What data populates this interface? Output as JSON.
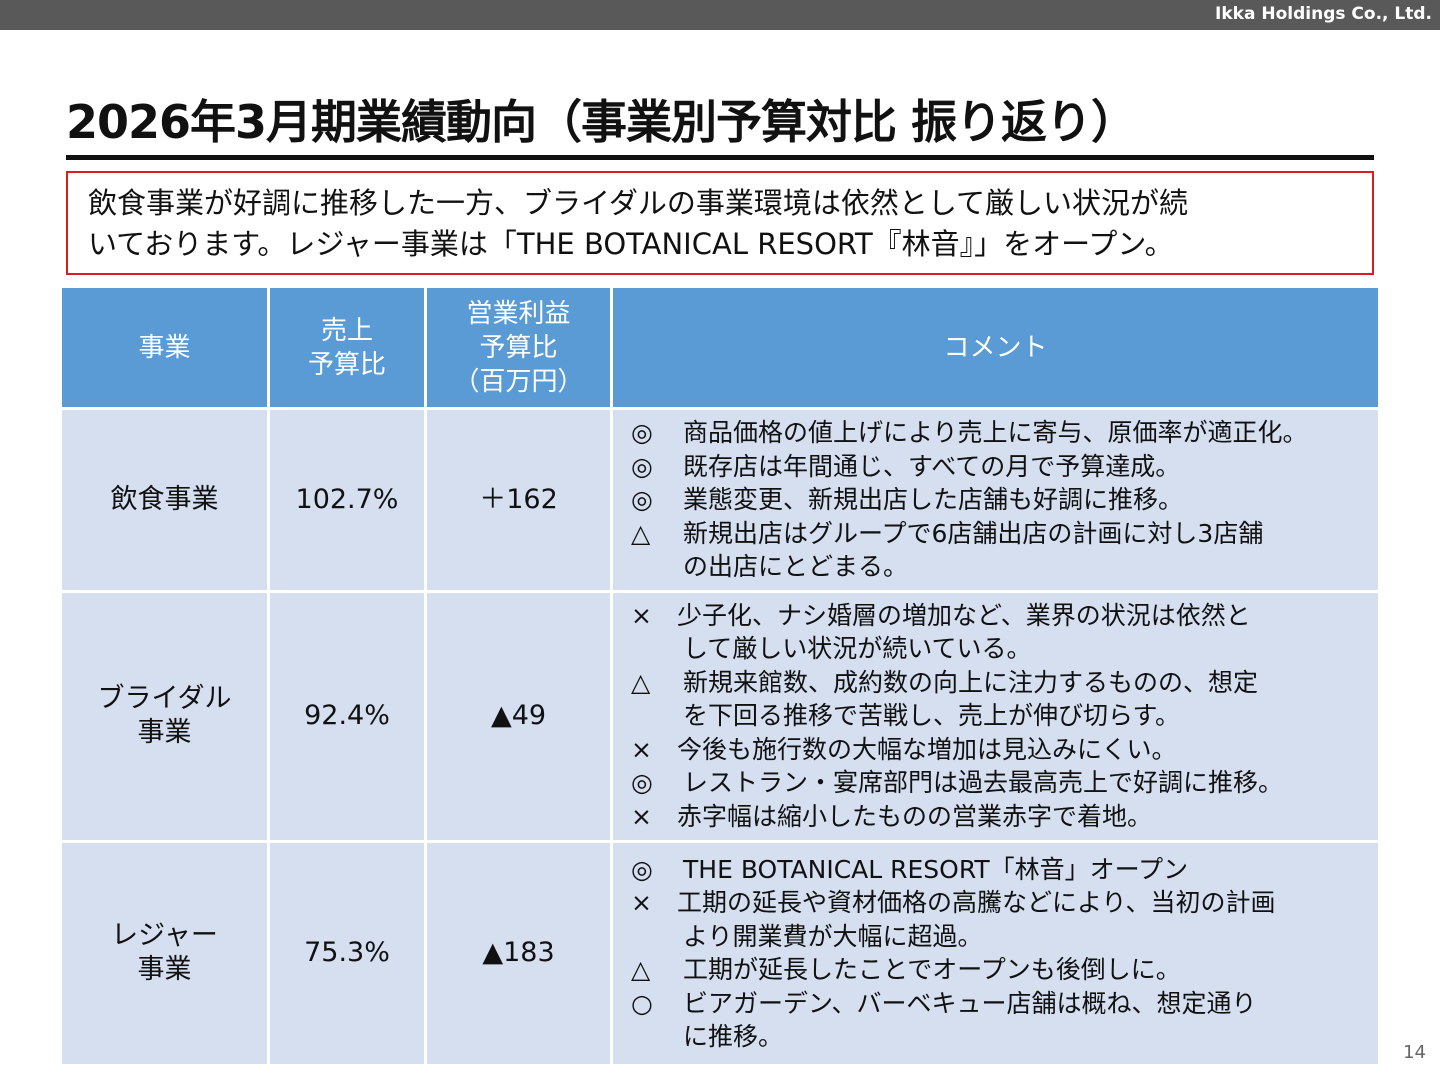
{
  "header": {
    "company": "Ikka Holdings Co., Ltd."
  },
  "title": "2026年3月期業績動向（事業別予算対比 振り返り）",
  "summary": {
    "line1": "飲食事業が好調に推移した一方、ブライダルの事業環境は依然として厳しい状況が続",
    "line2": "いております。レジャー事業は「THE BOTANICAL RESORT『林音』」をオープン。"
  },
  "table": {
    "headers": {
      "business": "事業",
      "sales_line1": "売上",
      "sales_line2": "予算比",
      "op_line1": "営業利益",
      "op_line2": "予算比",
      "op_line3": "（百万円）",
      "comment": "コメント"
    },
    "rows": [
      {
        "business_line1": "飲食事業",
        "business_line2": "",
        "sales": "102.7%",
        "op": "＋162",
        "comments": [
          {
            "symbol": "◎",
            "text": "商品価格の値上げにより売上に寄与、原価率が適正化。",
            "cont": ""
          },
          {
            "symbol": "◎",
            "text": "既存店は年間通じ、すべての月で予算達成。",
            "cont": ""
          },
          {
            "symbol": "◎",
            "text": "業態変更、新規出店した店舗も好調に推移。",
            "cont": ""
          },
          {
            "symbol": "△",
            "text": "新規出店はグループで6店舗出店の計画に対し3店舗",
            "cont": "の出店にとどまる。"
          }
        ]
      },
      {
        "business_line1": "ブライダル",
        "business_line2": "事業",
        "sales": "92.4%",
        "op": "▲49",
        "comments": [
          {
            "symbol": "×",
            "text": "少子化、ナシ婚層の増加など、業界の状況は依然と",
            "cont": "して厳しい状況が続いている。"
          },
          {
            "symbol": "△",
            "text": "新規来館数、成約数の向上に注力するものの、想定",
            "cont": "を下回る推移で苦戦し、売上が伸び切らす。"
          },
          {
            "symbol": "×",
            "text": "今後も施行数の大幅な増加は見込みにくい。",
            "cont": ""
          },
          {
            "symbol": "◎",
            "text": "レストラン・宴席部門は過去最高売上で好調に推移。",
            "cont": ""
          },
          {
            "symbol": "×",
            "text": "赤字幅は縮小したものの営業赤字で着地。",
            "cont": ""
          }
        ]
      },
      {
        "business_line1": "レジャー",
        "business_line2": "事業",
        "sales": "75.3%",
        "op": "▲183",
        "comments": [
          {
            "symbol": "◎",
            "text": "THE BOTANICAL RESORT「林音」オープン",
            "cont": ""
          },
          {
            "symbol": "×",
            "text": "工期の延長や資材価格の高騰などにより、当初の計画",
            "cont": "より開業費が大幅に超過。"
          },
          {
            "symbol": "△",
            "text": "工期が延長したことでオープンも後倒しに。",
            "cont": ""
          },
          {
            "symbol": "○",
            "text": "ビアガーデン、バーベキュー店舗は概ね、想定通り",
            "cont": "に推移。"
          }
        ]
      }
    ]
  },
  "page_number": "14"
}
